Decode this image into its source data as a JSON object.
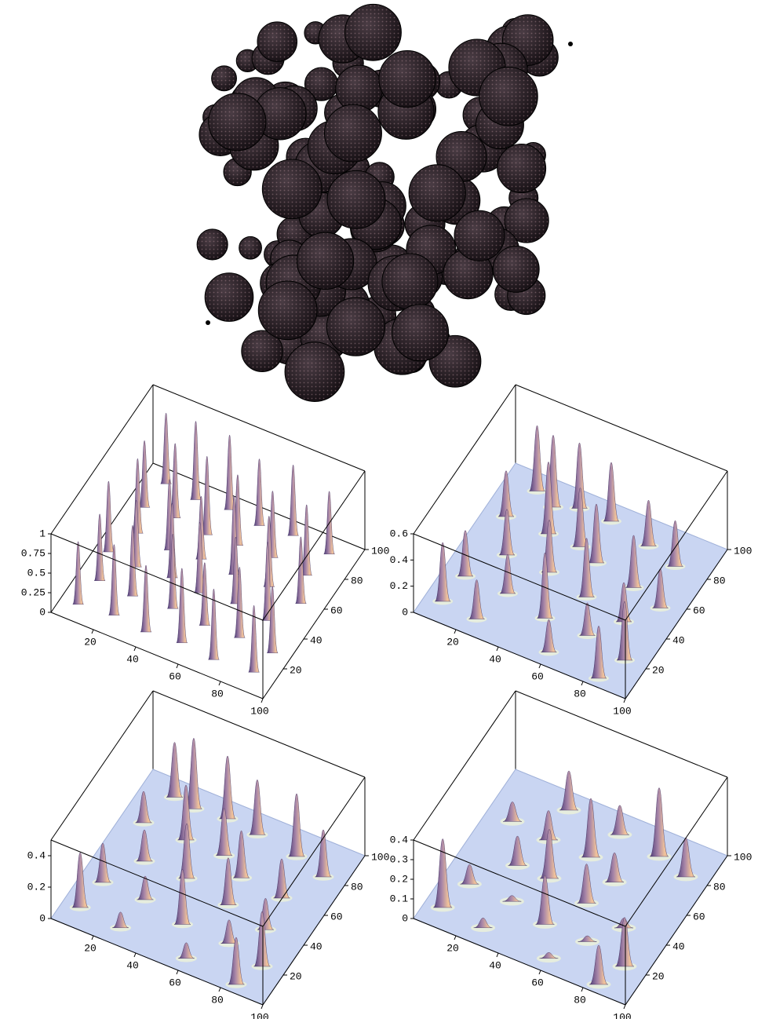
{
  "chart_data": [
    {
      "type": "surface",
      "floor": false,
      "xlim": [
        0,
        100
      ],
      "ylim": [
        0,
        100
      ],
      "zlim": [
        0,
        1
      ],
      "xticks": [
        20,
        40,
        60,
        80,
        100
      ],
      "yticks": [
        20,
        40,
        60,
        80,
        100
      ],
      "zticks": [
        0,
        0.25,
        0.5,
        0.75,
        1
      ],
      "peaks": [
        {
          "x": 10,
          "y": 92,
          "z": 0.9
        },
        {
          "x": 25,
          "y": 90,
          "z": 1
        },
        {
          "x": 40,
          "y": 92,
          "z": 0.95
        },
        {
          "x": 55,
          "y": 90,
          "z": 0.85
        },
        {
          "x": 70,
          "y": 92,
          "z": 0.9
        },
        {
          "x": 88,
          "y": 90,
          "z": 0.8
        },
        {
          "x": 8,
          "y": 75,
          "z": 0.85
        },
        {
          "x": 22,
          "y": 76,
          "z": 0.95
        },
        {
          "x": 38,
          "y": 74,
          "z": 1
        },
        {
          "x": 52,
          "y": 75,
          "z": 0.9
        },
        {
          "x": 68,
          "y": 76,
          "z": 0.85
        },
        {
          "x": 85,
          "y": 74,
          "z": 0.9
        },
        {
          "x": 12,
          "y": 60,
          "z": 0.95
        },
        {
          "x": 28,
          "y": 58,
          "z": 0.9
        },
        {
          "x": 42,
          "y": 60,
          "z": 0.8
        },
        {
          "x": 58,
          "y": 59,
          "z": 1
        },
        {
          "x": 74,
          "y": 60,
          "z": 0.9
        },
        {
          "x": 90,
          "y": 58,
          "z": 0.85
        },
        {
          "x": 6,
          "y": 44,
          "z": 0.9
        },
        {
          "x": 20,
          "y": 42,
          "z": 0.85
        },
        {
          "x": 36,
          "y": 44,
          "z": 0.95
        },
        {
          "x": 50,
          "y": 42,
          "z": 0.9
        },
        {
          "x": 66,
          "y": 44,
          "z": 0.85
        },
        {
          "x": 82,
          "y": 42,
          "z": 1
        },
        {
          "x": 10,
          "y": 27,
          "z": 0.85
        },
        {
          "x": 26,
          "y": 26,
          "z": 0.9
        },
        {
          "x": 44,
          "y": 28,
          "z": 0.95
        },
        {
          "x": 60,
          "y": 26,
          "z": 0.8
        },
        {
          "x": 76,
          "y": 27,
          "z": 0.9
        },
        {
          "x": 92,
          "y": 26,
          "z": 0.85
        },
        {
          "x": 8,
          "y": 10,
          "z": 0.8
        },
        {
          "x": 24,
          "y": 12,
          "z": 0.9
        },
        {
          "x": 40,
          "y": 10,
          "z": 0.85
        },
        {
          "x": 56,
          "y": 12,
          "z": 0.95
        },
        {
          "x": 72,
          "y": 10,
          "z": 0.9
        },
        {
          "x": 90,
          "y": 12,
          "z": 0.85
        }
      ]
    },
    {
      "type": "surface",
      "floor": true,
      "xlim": [
        0,
        100
      ],
      "ylim": [
        0,
        100
      ],
      "zlim": [
        0,
        0.6
      ],
      "xticks": [
        20,
        40,
        60,
        80,
        100
      ],
      "yticks": [
        20,
        40,
        60,
        80,
        100
      ],
      "zticks": [
        0,
        0.2,
        0.4,
        0.6
      ],
      "peaks": [
        {
          "x": 15,
          "y": 90,
          "z": 0.5
        },
        {
          "x": 25,
          "y": 85,
          "z": 0.55
        },
        {
          "x": 35,
          "y": 90,
          "z": 0.5
        },
        {
          "x": 50,
          "y": 90,
          "z": 0.45
        },
        {
          "x": 70,
          "y": 85,
          "z": 0.35
        },
        {
          "x": 85,
          "y": 80,
          "z": 0.35
        },
        {
          "x": 10,
          "y": 70,
          "z": 0.35
        },
        {
          "x": 30,
          "y": 70,
          "z": 0.55
        },
        {
          "x": 45,
          "y": 70,
          "z": 0.45
        },
        {
          "x": 55,
          "y": 65,
          "z": 0.45
        },
        {
          "x": 75,
          "y": 60,
          "z": 0.4
        },
        {
          "x": 90,
          "y": 55,
          "z": 0.3
        },
        {
          "x": 20,
          "y": 50,
          "z": 0.35
        },
        {
          "x": 40,
          "y": 50,
          "z": 0.4
        },
        {
          "x": 60,
          "y": 45,
          "z": 0.45
        },
        {
          "x": 80,
          "y": 40,
          "z": 0.3
        },
        {
          "x": 10,
          "y": 30,
          "z": 0.35
        },
        {
          "x": 30,
          "y": 30,
          "z": 0.3
        },
        {
          "x": 50,
          "y": 25,
          "z": 0.5
        },
        {
          "x": 70,
          "y": 25,
          "z": 0.25
        },
        {
          "x": 90,
          "y": 20,
          "z": 0.45
        },
        {
          "x": 8,
          "y": 12,
          "z": 0.45
        },
        {
          "x": 25,
          "y": 10,
          "z": 0.3
        },
        {
          "x": 60,
          "y": 8,
          "z": 0.25
        },
        {
          "x": 85,
          "y": 5,
          "z": 0.4
        }
      ]
    },
    {
      "type": "surface",
      "floor": true,
      "xlim": [
        0,
        100
      ],
      "ylim": [
        0,
        100
      ],
      "zlim": [
        0,
        0.5
      ],
      "xticks": [
        20,
        40,
        60,
        80,
        100
      ],
      "yticks": [
        20,
        40,
        60,
        80,
        100
      ],
      "zticks": [
        0,
        0.2,
        0.4
      ],
      "peaks": [
        {
          "x": 15,
          "y": 90,
          "z": 0.35
        },
        {
          "x": 25,
          "y": 88,
          "z": 0.45
        },
        {
          "x": 40,
          "y": 90,
          "z": 0.4
        },
        {
          "x": 55,
          "y": 88,
          "z": 0.35
        },
        {
          "x": 75,
          "y": 85,
          "z": 0.4
        },
        {
          "x": 90,
          "y": 80,
          "z": 0.3
        },
        {
          "x": 10,
          "y": 70,
          "z": 0.2
        },
        {
          "x": 30,
          "y": 70,
          "z": 0.35
        },
        {
          "x": 48,
          "y": 70,
          "z": 0.3
        },
        {
          "x": 60,
          "y": 62,
          "z": 0.3
        },
        {
          "x": 80,
          "y": 60,
          "z": 0.25
        },
        {
          "x": 20,
          "y": 50,
          "z": 0.2
        },
        {
          "x": 40,
          "y": 50,
          "z": 0.35
        },
        {
          "x": 62,
          "y": 45,
          "z": 0.3
        },
        {
          "x": 82,
          "y": 40,
          "z": 0.2
        },
        {
          "x": 10,
          "y": 30,
          "z": 0.25
        },
        {
          "x": 30,
          "y": 30,
          "z": 0.15
        },
        {
          "x": 50,
          "y": 25,
          "z": 0.35
        },
        {
          "x": 72,
          "y": 25,
          "z": 0.15
        },
        {
          "x": 90,
          "y": 20,
          "z": 0.35
        },
        {
          "x": 8,
          "y": 12,
          "z": 0.35
        },
        {
          "x": 28,
          "y": 10,
          "z": 0.1
        },
        {
          "x": 60,
          "y": 8,
          "z": 0.1
        },
        {
          "x": 85,
          "y": 5,
          "z": 0.3
        }
      ]
    },
    {
      "type": "surface",
      "floor": true,
      "xlim": [
        0,
        100
      ],
      "ylim": [
        0,
        100
      ],
      "zlim": [
        0,
        0.4
      ],
      "xticks": [
        20,
        40,
        60,
        80,
        100
      ],
      "yticks": [
        20,
        40,
        60,
        80,
        100
      ],
      "zticks": [
        0,
        0.1,
        0.2,
        0.3,
        0.4
      ],
      "peaks": [
        {
          "x": 30,
          "y": 90,
          "z": 0.2
        },
        {
          "x": 55,
          "y": 88,
          "z": 0.15
        },
        {
          "x": 75,
          "y": 85,
          "z": 0.35
        },
        {
          "x": 90,
          "y": 80,
          "z": 0.2
        },
        {
          "x": 12,
          "y": 72,
          "z": 0.1
        },
        {
          "x": 30,
          "y": 70,
          "z": 0.15
        },
        {
          "x": 50,
          "y": 70,
          "z": 0.3
        },
        {
          "x": 65,
          "y": 62,
          "z": 0.15
        },
        {
          "x": 25,
          "y": 50,
          "z": 0.15
        },
        {
          "x": 40,
          "y": 50,
          "z": 0.25
        },
        {
          "x": 60,
          "y": 45,
          "z": 0.2
        },
        {
          "x": 80,
          "y": 40,
          "z": 0.05
        },
        {
          "x": 12,
          "y": 30,
          "z": 0.1
        },
        {
          "x": 32,
          "y": 30,
          "z": 0.03
        },
        {
          "x": 50,
          "y": 25,
          "z": 0.25
        },
        {
          "x": 70,
          "y": 25,
          "z": 0.03
        },
        {
          "x": 90,
          "y": 20,
          "z": 0.25
        },
        {
          "x": 8,
          "y": 12,
          "z": 0.35
        },
        {
          "x": 28,
          "y": 10,
          "z": 0.05
        },
        {
          "x": 60,
          "y": 8,
          "z": 0.03
        },
        {
          "x": 85,
          "y": 5,
          "z": 0.2
        }
      ]
    }
  ]
}
